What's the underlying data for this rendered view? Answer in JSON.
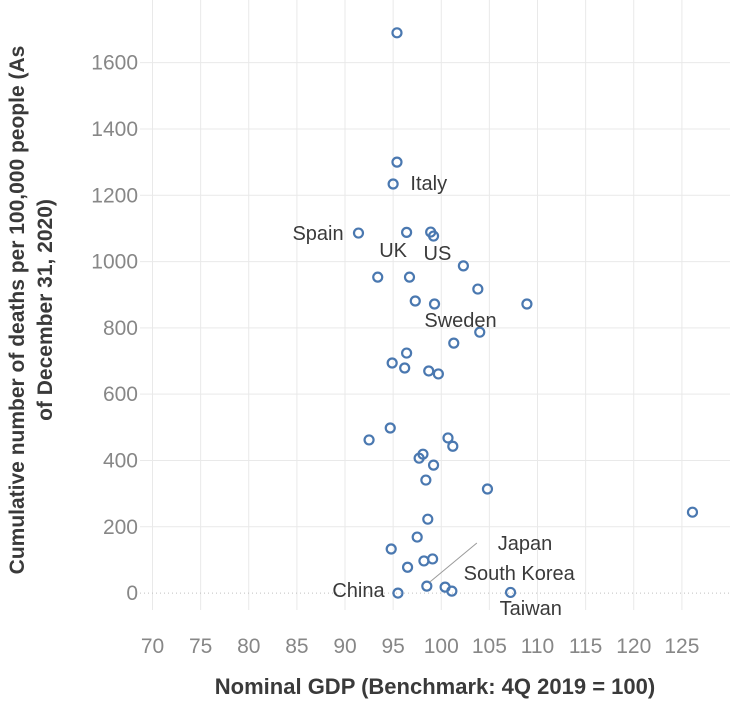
{
  "chart_data": {
    "type": "scatter",
    "title": "",
    "xlabel": "Nominal GDP (Benchmark: 4Q 2019 = 100)",
    "ylabel_line1": "Cumulative number of deaths per 100,000 people (As",
    "ylabel_line2": "of December 31, 2020)",
    "x_ticks": [
      70,
      75,
      80,
      85,
      90,
      95,
      100,
      105,
      110,
      115,
      120,
      125
    ],
    "y_ticks": [
      0,
      200,
      400,
      600,
      800,
      1000,
      1200,
      1400,
      1600
    ],
    "xlim": [
      68.7,
      130
    ],
    "ylim": [
      -51,
      1789
    ],
    "grid": "on",
    "zero_line_style": "dotted",
    "legend": "none",
    "point_color": "#4a78b0",
    "grid_color": "#e9e9e9",
    "zero_line_color": "#c0c0c0",
    "tick_color": "#878787",
    "label_color": "#3a3a3a",
    "points": [
      {
        "x": 95.4,
        "y": 1690
      },
      {
        "x": 95.4,
        "y": 1300
      },
      {
        "x": 95.0,
        "y": 1234,
        "country": "Italy"
      },
      {
        "x": 91.4,
        "y": 1086,
        "country": "Spain"
      },
      {
        "x": 96.4,
        "y": 1088,
        "country": "UK"
      },
      {
        "x": 98.9,
        "y": 1089
      },
      {
        "x": 99.2,
        "y": 1077,
        "country": "US"
      },
      {
        "x": 102.3,
        "y": 987
      },
      {
        "x": 93.4,
        "y": 953
      },
      {
        "x": 96.7,
        "y": 953
      },
      {
        "x": 103.8,
        "y": 917,
        "country": "Sweden"
      },
      {
        "x": 97.3,
        "y": 881
      },
      {
        "x": 99.3,
        "y": 872
      },
      {
        "x": 108.9,
        "y": 872
      },
      {
        "x": 104.0,
        "y": 787
      },
      {
        "x": 101.3,
        "y": 754
      },
      {
        "x": 96.4,
        "y": 724
      },
      {
        "x": 94.9,
        "y": 694
      },
      {
        "x": 96.2,
        "y": 679
      },
      {
        "x": 98.7,
        "y": 670
      },
      {
        "x": 99.7,
        "y": 661
      },
      {
        "x": 94.7,
        "y": 498
      },
      {
        "x": 100.7,
        "y": 468
      },
      {
        "x": 92.5,
        "y": 462
      },
      {
        "x": 101.2,
        "y": 443
      },
      {
        "x": 98.1,
        "y": 419
      },
      {
        "x": 97.7,
        "y": 407
      },
      {
        "x": 99.2,
        "y": 386
      },
      {
        "x": 98.4,
        "y": 341
      },
      {
        "x": 104.8,
        "y": 314
      },
      {
        "x": 126.1,
        "y": 244
      },
      {
        "x": 98.6,
        "y": 223
      },
      {
        "x": 97.5,
        "y": 169
      },
      {
        "x": 94.8,
        "y": 133
      },
      {
        "x": 99.1,
        "y": 103
      },
      {
        "x": 98.2,
        "y": 97
      },
      {
        "x": 96.5,
        "y": 78
      },
      {
        "x": 98.5,
        "y": 21,
        "country": "Japan"
      },
      {
        "x": 100.4,
        "y": 18,
        "country": "South Korea"
      },
      {
        "x": 101.1,
        "y": 6
      },
      {
        "x": 107.2,
        "y": 2,
        "country": "Taiwan"
      },
      {
        "x": 95.5,
        "y": 0,
        "country": "China"
      }
    ],
    "annotations": [
      {
        "text": "Italy",
        "x": 98.7,
        "y": 1237
      },
      {
        "text": "Spain",
        "x": 87.2,
        "y": 1086
      },
      {
        "text": "UK",
        "x": 95.0,
        "y": 1035
      },
      {
        "text": "US",
        "x": 99.6,
        "y": 1026
      },
      {
        "text": "Sweden",
        "x": 102.0,
        "y": 824
      },
      {
        "text": "Japan",
        "x": 108.7,
        "y": 151,
        "leader": {
          "x1": 103.7,
          "y1": 151,
          "x2": 98.8,
          "y2": 33
        }
      },
      {
        "text": "South Korea",
        "x": 108.1,
        "y": 60
      },
      {
        "text": "China",
        "x": 91.4,
        "y": 9
      },
      {
        "text": "Taiwan",
        "x": 109.3,
        "y": -45
      }
    ]
  }
}
